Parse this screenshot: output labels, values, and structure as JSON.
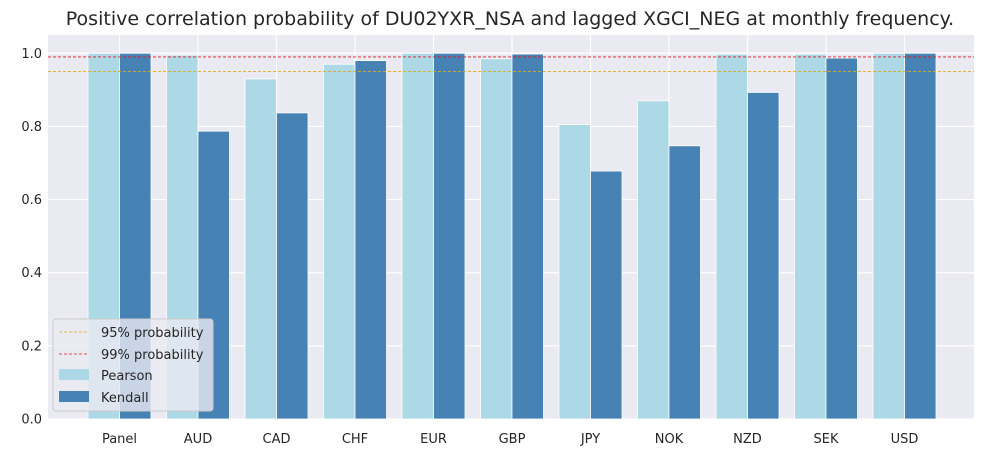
{
  "chart_data": {
    "type": "bar",
    "title": "Positive correlation probability of DU02YXR_NSA and lagged XGCI_NEG at monthly frequency.",
    "xlabel": "",
    "ylabel": "",
    "ylim": [
      0,
      1.05
    ],
    "yticks": [
      0.0,
      0.2,
      0.4,
      0.6,
      0.8,
      1.0
    ],
    "ytick_labels": [
      "0.0",
      "0.2",
      "0.4",
      "0.6",
      "0.8",
      "1.0"
    ],
    "categories": [
      "Panel",
      "AUD",
      "CAD",
      "CHF",
      "EUR",
      "GBP",
      "JPY",
      "NOK",
      "NZD",
      "SEK",
      "USD"
    ],
    "series": [
      {
        "name": "Pearson",
        "color": "#add8e6",
        "values": [
          1.0,
          0.995,
          0.93,
          0.97,
          1.0,
          0.985,
          0.805,
          0.87,
          0.998,
          0.998,
          1.0
        ]
      },
      {
        "name": "Kendall",
        "color": "#4682b4",
        "values": [
          1.0,
          0.787,
          0.837,
          0.98,
          1.0,
          0.998,
          0.678,
          0.747,
          0.893,
          0.987,
          1.0
        ]
      }
    ],
    "reference_lines": [
      {
        "name": "95% probability",
        "value": 0.95,
        "color": "#e3a919",
        "style": "dashed"
      },
      {
        "name": "99% probability",
        "value": 0.99,
        "color": "#e31a1c",
        "style": "dashed"
      }
    ],
    "legend": {
      "position": "lower-left",
      "entries": [
        "95% probability",
        "99% probability",
        "Pearson",
        "Kendall"
      ]
    },
    "background_color": "#eaeaf2",
    "grid": true
  }
}
